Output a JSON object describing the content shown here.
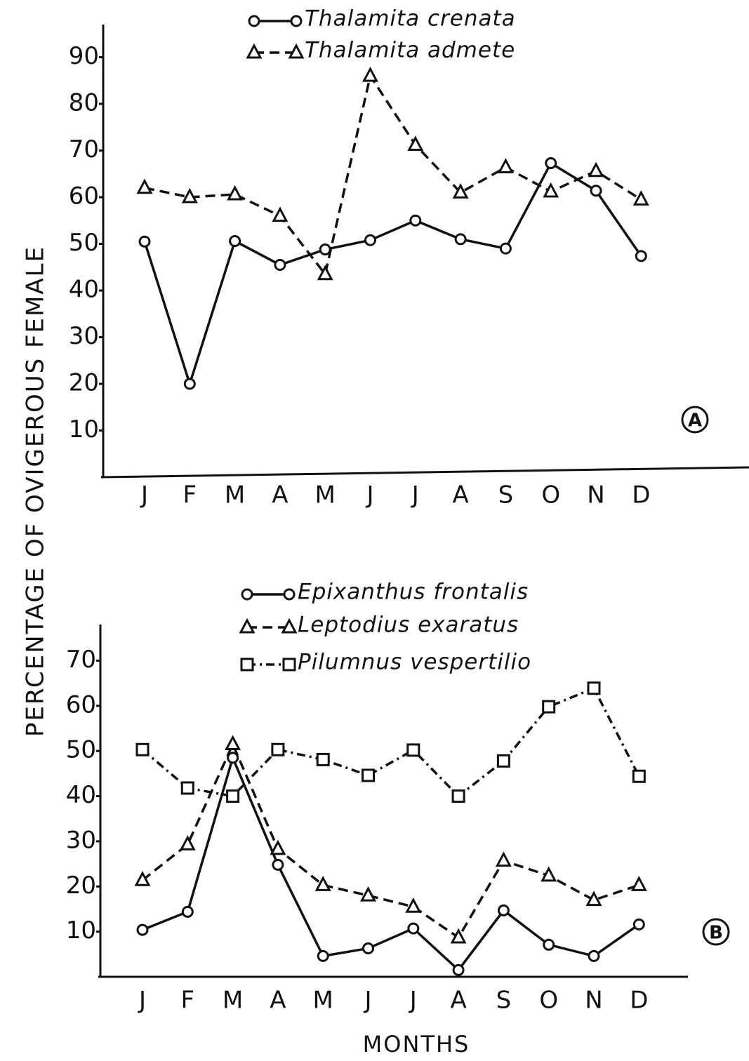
{
  "y_label": "PERCENTAGE OF OVIGEROUS FEMALE",
  "x_label": "MONTHS",
  "chart_data": [
    {
      "type": "line",
      "panel_label": "A",
      "categories": [
        "J",
        "F",
        "M",
        "A",
        "M",
        "J",
        "J",
        "A",
        "S",
        "O",
        "N",
        "D"
      ],
      "ylim": [
        0,
        97
      ],
      "yticks": [
        10,
        20,
        30,
        40,
        50,
        60,
        70,
        80,
        90
      ],
      "series": [
        {
          "name": "Thalamita crenata",
          "color": "#111111",
          "dash": "solid",
          "marker": "circle",
          "values": [
            50.5,
            20,
            50.6,
            45.5,
            48.8,
            50.8,
            55,
            51,
            49,
            67.3,
            61.4,
            47.4
          ]
        },
        {
          "name": "Thalamita admete",
          "color": "#111111",
          "dash": "dashed",
          "marker": "triangle",
          "values": [
            62,
            60,
            60.6,
            56,
            43.5,
            86,
            71.2,
            61,
            66.4,
            61.2,
            65.6,
            59.5
          ]
        }
      ]
    },
    {
      "type": "line",
      "panel_label": "B",
      "categories": [
        "J",
        "F",
        "M",
        "A",
        "M",
        "J",
        "J",
        "A",
        "S",
        "O",
        "N",
        "D"
      ],
      "ylim": [
        0,
        78
      ],
      "yticks": [
        10,
        20,
        30,
        40,
        50,
        60,
        70
      ],
      "series": [
        {
          "name": "Epixanthus frontalis",
          "color": "#111111",
          "dash": "solid",
          "marker": "circle",
          "values": [
            10.4,
            14.4,
            48.5,
            24.8,
            4.6,
            6.3,
            10.7,
            1.5,
            14.7,
            7.1,
            4.6,
            11.6
          ]
        },
        {
          "name": "Leptodius exaratus",
          "color": "#111111",
          "dash": "dashed",
          "marker": "triangle",
          "values": [
            21.4,
            29.3,
            51.5,
            28.3,
            20.3,
            18,
            15.5,
            8.7,
            25.7,
            22.4,
            17,
            20.3
          ]
        },
        {
          "name": "Pilumnus vespertilio",
          "color": "#111111",
          "dash": "dashdot",
          "marker": "square",
          "values": [
            50.3,
            41.8,
            40,
            50.3,
            48.1,
            44.6,
            50.2,
            40,
            47.8,
            59.8,
            63.9,
            44.4
          ]
        }
      ]
    }
  ]
}
